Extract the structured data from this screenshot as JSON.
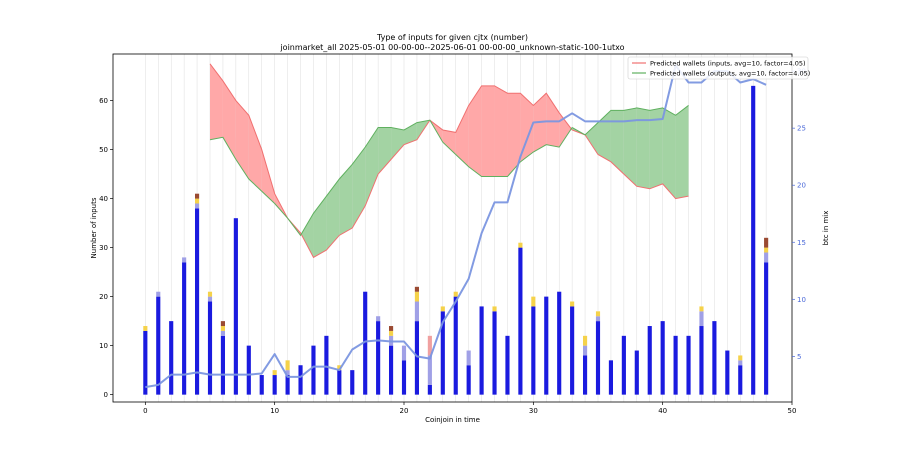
{
  "chart_data": {
    "type": "bar",
    "title": "Type of inputs for given cjtx (number)",
    "subtitle": "joinmarket_all 2025-05-01 00-00-00--2025-06-01 00-00-00_unknown-static-100-1utxo",
    "xlabel": "Coinjoin in time",
    "ylabel": "Number of inputs",
    "ylabel_right": "btc in mix",
    "xlim": [
      -2.5,
      50
    ],
    "ylim": [
      -1.5,
      69.5
    ],
    "ylim_right": [
      1,
      31.5
    ],
    "x_ticks": [
      0,
      10,
      20,
      30,
      40,
      50
    ],
    "y_ticks": [
      0,
      10,
      20,
      30,
      40,
      50,
      60
    ],
    "y_ticks_right": [
      5,
      10,
      15,
      20,
      25,
      30
    ],
    "grid_x": true,
    "legend_position": "top-right",
    "colors": {
      "fresh": "#1a1adf",
      "remix": "#a0a0e6",
      "yellow": "#f5d24a",
      "brown": "#9a4a32",
      "pink": "#f0a0a0",
      "inputs_line": "#f07070",
      "inputs_fill": "#ffa8a8",
      "outputs_line": "#5fb05f",
      "outputs_fill": "#a3d3a3",
      "outline": "#808040",
      "btc_line": "#7b96e0",
      "right_axis": "#4a68d8"
    },
    "bars": {
      "x": [
        0,
        1,
        2,
        3,
        4,
        5,
        6,
        7,
        8,
        9,
        10,
        11,
        12,
        13,
        14,
        15,
        16,
        17,
        18,
        19,
        20,
        21,
        22,
        23,
        24,
        25,
        26,
        27,
        28,
        29,
        30,
        31,
        32,
        33,
        34,
        35,
        36,
        37,
        38,
        39,
        40,
        41,
        42,
        43,
        44,
        45,
        46,
        47,
        48
      ],
      "fresh": [
        13,
        20,
        15,
        27,
        38,
        19,
        12,
        36,
        10,
        4,
        4,
        4,
        6,
        10,
        12,
        5,
        5,
        21,
        15,
        10,
        7,
        15,
        2,
        17,
        20,
        6,
        18,
        17,
        12,
        30,
        18,
        20,
        21,
        18,
        8,
        15,
        7,
        12,
        9,
        14,
        15,
        12,
        12,
        14,
        15,
        9,
        6,
        63,
        27
      ],
      "remix": [
        0,
        1,
        0,
        1,
        1,
        1,
        1,
        0,
        0,
        0,
        0,
        1,
        0,
        0,
        0,
        0,
        0,
        0,
        1,
        2,
        3,
        4,
        6,
        0,
        0,
        3,
        0,
        0,
        0,
        0,
        0,
        0,
        0,
        0,
        2,
        1,
        0,
        0,
        0,
        0,
        0,
        0,
        0,
        3,
        0,
        0,
        1,
        0,
        2
      ],
      "yellow": [
        1,
        0,
        0,
        0,
        1,
        1,
        1,
        0,
        0,
        0,
        1,
        2,
        0,
        0,
        0,
        1,
        0,
        0,
        0,
        1,
        0,
        2,
        0,
        1,
        1,
        0,
        0,
        1,
        0,
        1,
        2,
        0,
        0,
        1,
        2,
        1,
        0,
        0,
        0,
        0,
        0,
        0,
        0,
        1,
        0,
        0,
        1,
        0,
        1
      ],
      "brown": [
        0,
        0,
        0,
        0,
        1,
        0,
        1,
        0,
        0,
        0,
        0,
        0,
        0,
        0,
        0,
        0,
        0,
        0,
        0,
        1,
        0,
        1,
        0,
        0,
        0,
        0,
        0,
        0,
        0,
        0,
        0,
        0,
        0,
        0,
        0,
        0,
        0,
        0,
        0,
        0,
        0,
        0,
        0,
        0,
        0,
        0,
        0,
        0,
        2
      ],
      "pink": [
        0,
        0,
        0,
        0,
        0,
        0,
        0,
        0,
        0,
        0,
        0,
        0,
        0,
        0,
        0,
        0,
        0,
        0,
        0,
        0,
        0,
        0,
        4,
        0,
        0,
        0,
        0,
        0,
        0,
        0,
        0,
        0,
        0,
        0,
        0,
        0,
        0,
        0,
        0,
        0,
        0,
        0,
        0,
        0,
        0,
        0,
        0,
        0,
        0
      ]
    },
    "series": [
      {
        "name": "Predicted wallets (inputs, avg=10, factor=4.05)",
        "x": [
          5,
          6,
          7,
          8,
          9,
          10,
          11,
          12,
          13,
          14,
          15,
          16,
          17,
          18,
          19,
          20,
          21,
          22,
          23,
          24,
          25,
          26,
          27,
          28,
          29,
          30,
          31,
          32,
          33,
          34,
          35,
          36,
          37,
          38,
          39,
          40,
          41,
          42
        ],
        "values": [
          67.5,
          64,
          60,
          57,
          50,
          41,
          36,
          33,
          28,
          29.5,
          32.5,
          34,
          38.5,
          45,
          48,
          51,
          52,
          56,
          54,
          53.5,
          59,
          63,
          63,
          61.5,
          61.5,
          59,
          61.5,
          57.5,
          54,
          53,
          49,
          47.5,
          45,
          42.5,
          42,
          43,
          40,
          40.5
        ]
      },
      {
        "name": "Predicted wallets (outputs, avg=10, factor=4.05)",
        "x": [
          5,
          6,
          7,
          8,
          9,
          10,
          11,
          12,
          13,
          14,
          15,
          16,
          17,
          18,
          19,
          20,
          21,
          22,
          23,
          24,
          25,
          26,
          27,
          28,
          29,
          30,
          31,
          32,
          33,
          34,
          35,
          36,
          37,
          38,
          39,
          40,
          41,
          42
        ],
        "values": [
          52,
          52.5,
          48,
          44,
          41.5,
          39,
          36,
          32.5,
          37,
          40.5,
          44,
          47,
          50.5,
          54.5,
          54.5,
          54,
          55.5,
          56,
          51.5,
          49,
          46.5,
          44.5,
          44.5,
          44.5,
          47.5,
          49.5,
          51,
          50.5,
          54.5,
          53,
          55.5,
          58,
          58,
          58.5,
          58,
          58.5,
          57,
          59
        ]
      },
      {
        "name": "btc in mix",
        "axis": "right",
        "x": [
          0,
          1,
          2,
          3,
          4,
          5,
          6,
          7,
          8,
          9,
          10,
          11,
          12,
          13,
          14,
          15,
          16,
          17,
          18,
          19,
          20,
          21,
          22,
          23,
          24,
          25,
          26,
          27,
          28,
          29,
          30,
          31,
          32,
          33,
          34,
          35,
          36,
          37,
          38,
          39,
          40,
          41,
          42,
          43,
          44,
          45,
          46,
          47,
          48
        ],
        "values": [
          2.3,
          2.5,
          3.4,
          3.4,
          3.6,
          3.4,
          3.4,
          3.4,
          3.4,
          3.5,
          5.2,
          3.2,
          3.2,
          4.1,
          4.1,
          3.8,
          5.6,
          6.3,
          6.4,
          6.3,
          6.3,
          5,
          4.8,
          8,
          9.8,
          11.8,
          15.8,
          18.5,
          18.5,
          22.5,
          25.5,
          25.6,
          25.6,
          26.3,
          25.6,
          25.6,
          25.6,
          25.6,
          25.7,
          25.7,
          25.8,
          30.5,
          29,
          29,
          30,
          30,
          29,
          29.3,
          28.8
        ]
      }
    ],
    "legend": [
      "Predicted wallets (inputs, avg=10, factor=4.05)",
      "Predicted wallets (outputs, avg=10, factor=4.05)"
    ]
  }
}
